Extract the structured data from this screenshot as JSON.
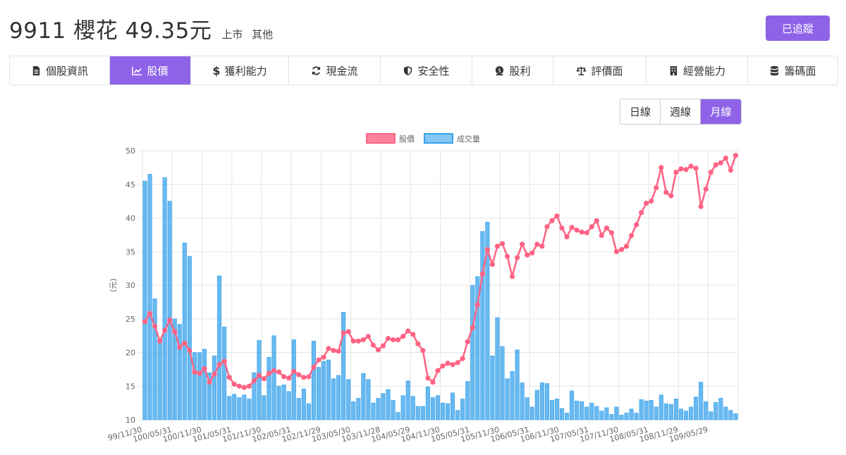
{
  "header": {
    "title": "9911 櫻花 49.35元",
    "market": "上市",
    "category": "其他",
    "track_label": "已追蹤"
  },
  "tabs": [
    {
      "label": "個股資訊",
      "icon": "file-icon",
      "active": false
    },
    {
      "label": "股價",
      "icon": "chart-line-icon",
      "active": true
    },
    {
      "label": "獲利能力",
      "icon": "dollar-icon",
      "active": false
    },
    {
      "label": "現金流",
      "icon": "refresh-icon",
      "active": false
    },
    {
      "label": "安全性",
      "icon": "shield-icon",
      "active": false
    },
    {
      "label": "股利",
      "icon": "coin-icon",
      "active": false
    },
    {
      "label": "評價面",
      "icon": "balance-scale-icon",
      "active": false
    },
    {
      "label": "經營能力",
      "icon": "building-icon",
      "active": false
    },
    {
      "label": "籌碼面",
      "icon": "database-icon",
      "active": false
    }
  ],
  "period": {
    "options": [
      "日線",
      "週線",
      "月線"
    ],
    "selected": "月線"
  },
  "colors": {
    "accent": "#8e63e8",
    "price_line": "#ff6384",
    "volume_bar": "#36a2eb"
  },
  "chart_data": {
    "type": "bar+line",
    "legend": [
      "股價",
      "成交量"
    ],
    "legend_position": "top",
    "ylabel": "(元)",
    "ylim": [
      10,
      50
    ],
    "yticks": [
      10,
      15,
      20,
      25,
      30,
      35,
      40,
      45,
      50
    ],
    "grid": true,
    "xtick_labels": [
      "99/11/30",
      "100/05/31",
      "100/11/30",
      "101/05/31",
      "101/11/30",
      "102/05/31",
      "102/11/29",
      "103/05/30",
      "103/11/28",
      "104/05/29",
      "104/11/30",
      "105/05/31",
      "105/11/30",
      "106/05/31",
      "106/11/30",
      "107/05/31",
      "107/11/30",
      "108/05/31",
      "108/11/29",
      "109/05/29"
    ],
    "series": [
      {
        "name": "股價",
        "kind": "line",
        "values": [
          24.6,
          25.8,
          23.9,
          21.7,
          23.3,
          24.8,
          23.1,
          20.8,
          21.4,
          20.3,
          17.1,
          16.9,
          17.6,
          15.6,
          16.8,
          18.2,
          18.7,
          16.3,
          15.3,
          15.0,
          14.8,
          15.0,
          15.8,
          16.6,
          16.1,
          16.9,
          17.3,
          17.1,
          16.4,
          16.2,
          17.2,
          16.7,
          16.3,
          16.4,
          17.8,
          18.9,
          19.3,
          20.6,
          20.3,
          20.2,
          22.9,
          23.1,
          21.7,
          21.7,
          21.9,
          22.4,
          21.1,
          20.4,
          21.0,
          22.1,
          21.9,
          21.9,
          22.4,
          23.2,
          22.7,
          21.3,
          20.3,
          16.2,
          15.6,
          17.3,
          18.0,
          18.4,
          18.2,
          18.5,
          19.1,
          21.6,
          23.7,
          27.1,
          31.7,
          35.3,
          33.1,
          35.8,
          36.2,
          34.3,
          31.3,
          34.1,
          36.1,
          34.5,
          34.8,
          36.1,
          35.8,
          38.7,
          39.6,
          40.3,
          38.5,
          37.2,
          38.6,
          38.2,
          37.9,
          37.8,
          38.7,
          39.6,
          37.4,
          38.5,
          37.8,
          35.0,
          35.3,
          35.8,
          37.4,
          39.0,
          40.8,
          42.2,
          42.5,
          44.5,
          47.5,
          43.8,
          43.3,
          46.8,
          47.3,
          47.2,
          47.7,
          47.4,
          41.7,
          44.3,
          46.8,
          47.9,
          48.2,
          48.9,
          47.1,
          49.3
        ]
      },
      {
        "name": "成交量",
        "kind": "bar",
        "values": [
          45.5,
          46.5,
          28.0,
          22.0,
          46.0,
          42.5,
          25.0,
          24.2,
          36.3,
          34.3,
          20.0,
          20.0,
          20.5,
          17.0,
          19.5,
          31.4,
          23.8,
          13.5,
          13.8,
          13.3,
          13.7,
          13.1,
          17.0,
          21.8,
          13.6,
          19.3,
          22.5,
          15.0,
          15.2,
          14.2,
          21.9,
          13.2,
          14.6,
          12.4,
          21.7,
          17.8,
          18.7,
          18.9,
          16.1,
          16.6,
          26.0,
          16.0,
          12.7,
          13.2,
          16.9,
          16.0,
          12.5,
          13.2,
          13.9,
          14.5,
          12.9,
          11.1,
          13.6,
          15.8,
          13.5,
          12.0,
          12.0,
          14.9,
          13.3,
          13.6,
          12.5,
          12.4,
          14.0,
          11.4,
          13.1,
          15.7,
          30.0,
          31.3,
          38.0,
          39.4,
          19.5,
          25.2,
          20.9,
          16.1,
          17.2,
          20.4,
          15.5,
          13.3,
          11.9,
          14.4,
          15.5,
          15.4,
          12.9,
          13.1,
          11.7,
          11.0,
          14.3,
          12.8,
          12.7,
          11.9,
          12.5,
          12.0,
          11.3,
          11.8,
          10.8,
          11.9,
          10.7,
          11.0,
          11.6,
          11.0,
          13.0,
          12.8,
          12.9,
          11.9,
          13.7,
          12.4,
          12.3,
          13.1,
          11.6,
          11.3,
          11.9,
          13.4,
          15.6,
          12.7,
          11.2,
          12.6,
          13.2,
          11.9,
          11.4,
          10.9
        ]
      }
    ]
  }
}
